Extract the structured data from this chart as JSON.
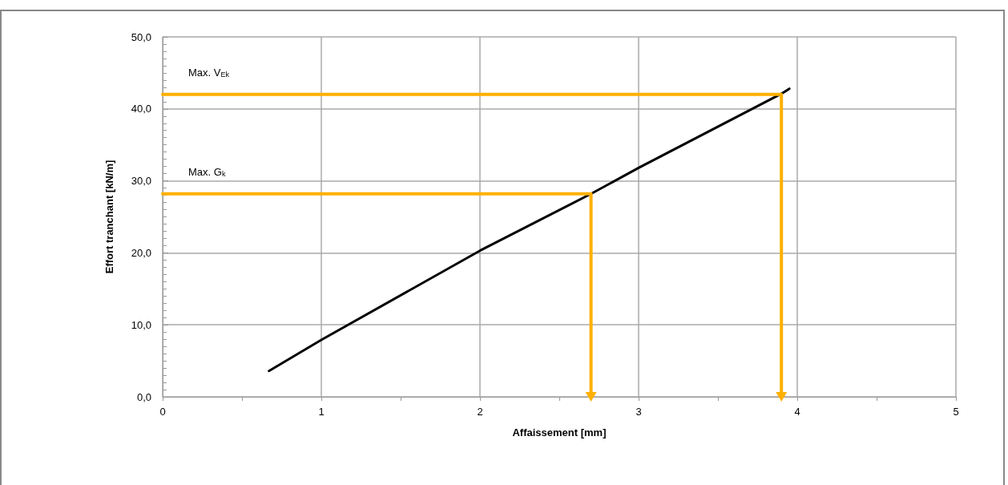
{
  "chart_data": {
    "type": "line",
    "xlabel": "Affaissement [mm]",
    "ylabel": "Effort tranchant [kN/m]",
    "xlim": [
      0,
      5
    ],
    "xticks": [
      0,
      1,
      2,
      3,
      4,
      5
    ],
    "ylim": [
      0,
      50
    ],
    "yticks": [
      {
        "value": 0,
        "label": "0,0"
      },
      {
        "value": 10,
        "label": "10,0"
      },
      {
        "value": 20,
        "label": "20,0"
      },
      {
        "value": 30,
        "label": "30,0"
      },
      {
        "value": 40,
        "label": "40,0"
      },
      {
        "value": 50,
        "label": "50,0"
      }
    ],
    "grid": true,
    "legend": false,
    "line_style": "solid",
    "marker": "none",
    "series": [
      {
        "color": "#000000",
        "x": [
          0.67,
          1,
          2,
          2.7,
          3,
          3.9,
          3.95
        ],
        "values": [
          3.6,
          7.9,
          20.3,
          28.2,
          31.8,
          42.1,
          42.8
        ]
      },
      {
        "name": "Max. V$_{Ek}$",
        "color": "#ffb000",
        "x": [
          0,
          3.9,
          3.9
        ],
        "values": [
          42,
          42,
          0
        ]
      },
      {
        "name": "Max. G$_{k}$",
        "color": "#ffb000",
        "x": [
          0,
          2.7,
          2.7
        ],
        "values": [
          28.2,
          28.2,
          0
        ]
      }
    ]
  }
}
